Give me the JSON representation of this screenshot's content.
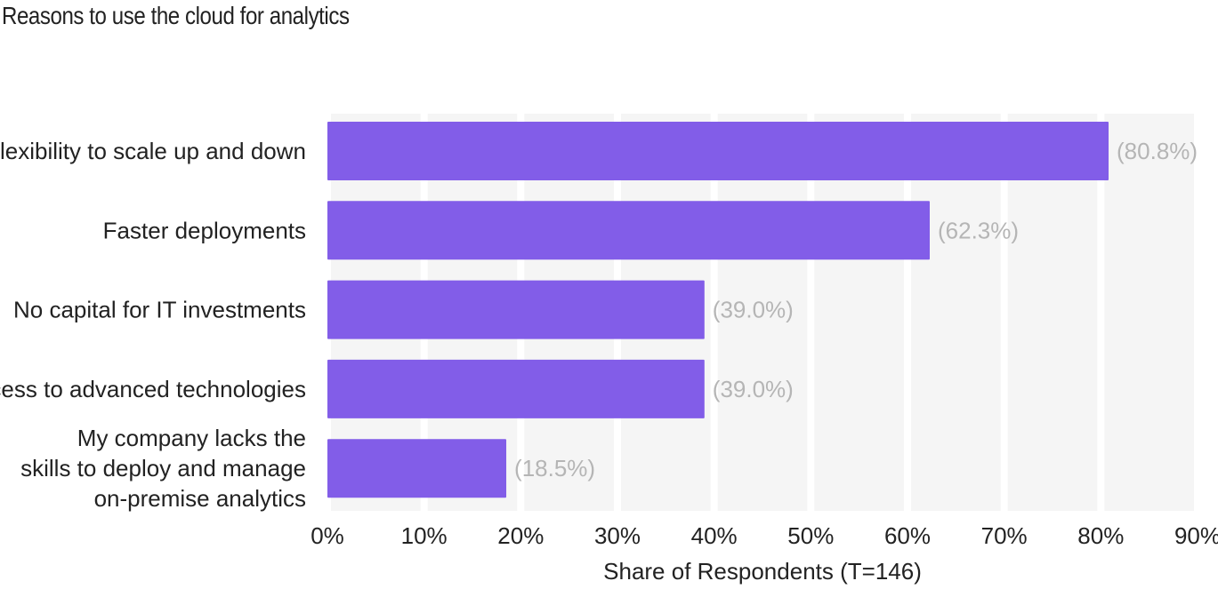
{
  "chart_data": {
    "type": "bar",
    "orientation": "horizontal",
    "title": "Reasons to use the cloud for analytics",
    "categories": [
      "Flexibility to scale up and down",
      "Faster deployments",
      "No capital for IT investments",
      "Access to advanced technologies",
      "My company lacks the skills to deploy and manage on-premise analytics"
    ],
    "category_lines": [
      [
        "Flexibility to scale up and down"
      ],
      [
        "Faster deployments"
      ],
      [
        "No capital for IT investments"
      ],
      [
        "Access to advanced technologies"
      ],
      [
        "My company lacks the",
        "skills to deploy and manage",
        "on-premise analytics"
      ]
    ],
    "values": [
      80.8,
      62.3,
      39.0,
      39.0,
      18.5
    ],
    "value_labels": [
      "(80.8%)",
      "(62.3%)",
      "(39.0%)",
      "(39.0%)",
      "(18.5%)"
    ],
    "xlabel": "Share of Respondents (T=146)",
    "ylabel": "",
    "xlim": [
      0,
      90
    ],
    "ticks": [
      0,
      10,
      20,
      30,
      40,
      50,
      60,
      70,
      80,
      90
    ],
    "tick_labels": [
      "0%",
      "10%",
      "20%",
      "30%",
      "40%",
      "50%",
      "60%",
      "70%",
      "80%",
      "90%"
    ],
    "grid": "alternating vertical bands",
    "legend": "none",
    "colors": {
      "bar": "#825de8",
      "band": "#f5f5f5",
      "value_label": "#b5b5b5",
      "text": "#222222"
    }
  }
}
